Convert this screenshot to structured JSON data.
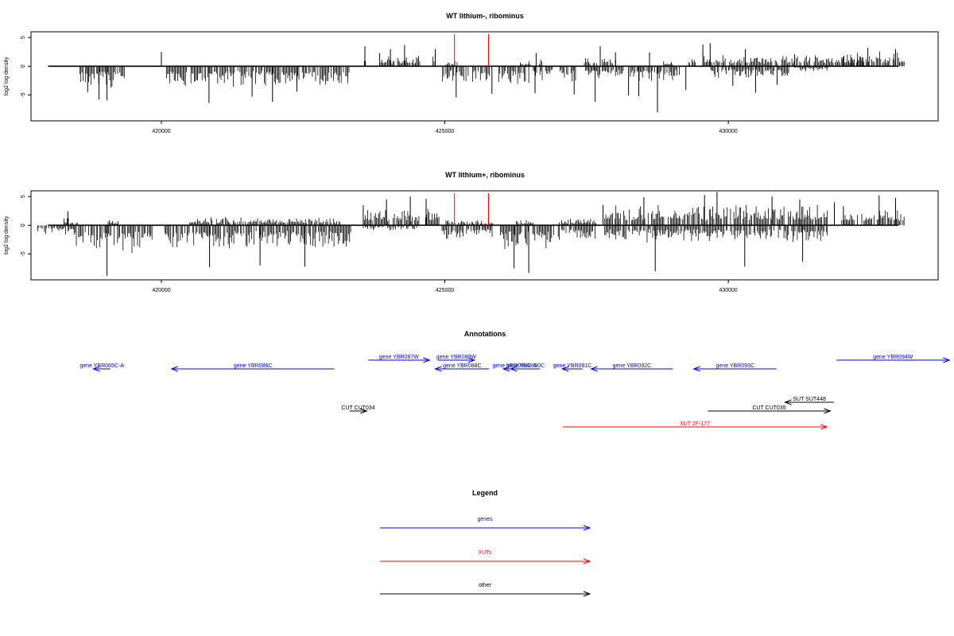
{
  "chart_data": [
    {
      "type": "bar",
      "title": "WT lithium-, ribominus",
      "ylabel": "log2 log density",
      "xlim": [
        417700,
        433700
      ],
      "ylim": [
        -9.5,
        6
      ],
      "xticks": [
        420000,
        425000,
        430000
      ],
      "yticks": [
        5,
        0,
        -5
      ],
      "grid": false,
      "baseline": 0,
      "markers_x": [
        425170,
        425770
      ],
      "marker_color": "#ff0000",
      "bar_color": "#000000",
      "peaks": [
        [
          420000,
          2.5
        ],
        [
          423590,
          3.5
        ],
        [
          423850,
          2.3
        ],
        [
          424040,
          3
        ],
        [
          424290,
          3.7
        ],
        [
          424830,
          3
        ],
        [
          426610,
          2.3
        ],
        [
          427740,
          3.5
        ],
        [
          428010,
          2.4
        ],
        [
          428610,
          2.4
        ],
        [
          429550,
          3.8
        ],
        [
          429680,
          4
        ],
        [
          430300,
          3
        ],
        [
          431170,
          2.1
        ],
        [
          432460,
          3.2
        ],
        [
          432950,
          3
        ],
        [
          418700,
          -4.5
        ],
        [
          418900,
          -5.8
        ],
        [
          419040,
          -5.9
        ],
        [
          420840,
          -6.4
        ],
        [
          421600,
          -5.3
        ],
        [
          421960,
          -6.2
        ],
        [
          422390,
          -4.4
        ],
        [
          425200,
          -5.4
        ],
        [
          425830,
          -4.8
        ],
        [
          426590,
          -4.7
        ],
        [
          427280,
          -4.9
        ],
        [
          427650,
          -6.2
        ],
        [
          428240,
          -5.1
        ],
        [
          428420,
          -5.2
        ],
        [
          428750,
          -8
        ],
        [
          429250,
          -4.1
        ],
        [
          430080,
          -3.4
        ],
        [
          430480,
          -4.6
        ],
        [
          430860,
          -3.2
        ]
      ],
      "segments": [
        {
          "from": 418560,
          "to": 419350,
          "sign": -1,
          "scale": 3.5
        },
        {
          "from": 420090,
          "to": 423310,
          "sign": -1,
          "scale": 3.2
        },
        {
          "from": 423560,
          "to": 423610,
          "sign": 1,
          "scale": 2.2
        },
        {
          "from": 423870,
          "to": 424560,
          "sign": 1,
          "scale": 1.8
        },
        {
          "from": 424790,
          "to": 424830,
          "sign": 1,
          "scale": 1.6
        },
        {
          "from": 424960,
          "to": 425790,
          "sign": -1,
          "scale": 2.5
        },
        {
          "from": 425000,
          "to": 425220,
          "sign": 1,
          "scale": 0.8
        },
        {
          "from": 425950,
          "to": 426510,
          "sign": -1,
          "scale": 2.8
        },
        {
          "from": 426310,
          "to": 426520,
          "sign": 1,
          "scale": 0.9
        },
        {
          "from": 426560,
          "to": 426910,
          "sign": -1,
          "scale": 2.2
        },
        {
          "from": 426670,
          "to": 426720,
          "sign": 1,
          "scale": 1.2
        },
        {
          "from": 427030,
          "to": 427340,
          "sign": -1,
          "scale": 2.4
        },
        {
          "from": 427460,
          "to": 427690,
          "sign": 1,
          "scale": 1.4
        },
        {
          "from": 427740,
          "to": 428030,
          "sign": 1,
          "scale": 1.7
        },
        {
          "from": 427480,
          "to": 428180,
          "sign": -1,
          "scale": 2.3
        },
        {
          "from": 428270,
          "to": 429150,
          "sign": -1,
          "scale": 2.6
        },
        {
          "from": 428860,
          "to": 429050,
          "sign": 1,
          "scale": 1.2
        },
        {
          "from": 429300,
          "to": 429420,
          "sign": 1,
          "scale": 1.3
        },
        {
          "from": 429550,
          "to": 432390,
          "sign": 1,
          "scale": 1.8
        },
        {
          "from": 429690,
          "to": 431080,
          "sign": -1,
          "scale": 1.9
        },
        {
          "from": 431170,
          "to": 431770,
          "sign": -1,
          "scale": 0.8
        },
        {
          "from": 432000,
          "to": 433100,
          "sign": 1,
          "scale": 2.4
        }
      ]
    },
    {
      "type": "bar",
      "title": "WT lithium+, ribominus",
      "ylabel": "log2 log density",
      "xlim": [
        417700,
        433700
      ],
      "ylim": [
        -9.5,
        6
      ],
      "xticks": [
        420000,
        425000,
        430000
      ],
      "yticks": [
        5,
        0,
        -5
      ],
      "grid": false,
      "baseline": 0,
      "markers_x": [
        425170,
        425770
      ],
      "marker_color": "#ff0000",
      "bar_color": "#000000",
      "peaks": [
        [
          418350,
          2.4
        ],
        [
          423560,
          3.5
        ],
        [
          423970,
          4.5
        ],
        [
          424390,
          5
        ],
        [
          424670,
          4.6
        ],
        [
          427790,
          3.5
        ],
        [
          428510,
          4.9
        ],
        [
          429580,
          5.3
        ],
        [
          429800,
          5.8
        ],
        [
          430770,
          5
        ],
        [
          431260,
          4.5
        ],
        [
          431870,
          4
        ],
        [
          432030,
          3.3
        ],
        [
          432660,
          5.2
        ],
        [
          432950,
          4.8
        ],
        [
          419040,
          -8.8
        ],
        [
          420850,
          -7.3
        ],
        [
          421740,
          -7
        ],
        [
          422530,
          -7.2
        ],
        [
          426220,
          -7.5
        ],
        [
          426480,
          -8.3
        ],
        [
          428710,
          -8
        ],
        [
          430290,
          -7.2
        ],
        [
          431310,
          -6.3
        ]
      ],
      "segments": [
        {
          "from": 417800,
          "to": 418450,
          "sign": -1,
          "scale": 1.5
        },
        {
          "from": 418280,
          "to": 418520,
          "sign": 1,
          "scale": 1.2
        },
        {
          "from": 418460,
          "to": 419850,
          "sign": -1,
          "scale": 4.3
        },
        {
          "from": 419060,
          "to": 419270,
          "sign": 1,
          "scale": 0.9
        },
        {
          "from": 420060,
          "to": 423350,
          "sign": -1,
          "scale": 3.6
        },
        {
          "from": 420500,
          "to": 423200,
          "sign": 1,
          "scale": 1.3
        },
        {
          "from": 423580,
          "to": 424590,
          "sign": 1,
          "scale": 2.6
        },
        {
          "from": 423560,
          "to": 424520,
          "sign": -1,
          "scale": 0.8
        },
        {
          "from": 424660,
          "to": 424900,
          "sign": 1,
          "scale": 2.6
        },
        {
          "from": 424950,
          "to": 425850,
          "sign": -1,
          "scale": 2.3
        },
        {
          "from": 425000,
          "to": 425860,
          "sign": 1,
          "scale": 0.9
        },
        {
          "from": 425960,
          "to": 426930,
          "sign": -1,
          "scale": 3.9
        },
        {
          "from": 426260,
          "to": 426570,
          "sign": 1,
          "scale": 0.9
        },
        {
          "from": 427000,
          "to": 427680,
          "sign": -1,
          "scale": 2.3
        },
        {
          "from": 427020,
          "to": 427680,
          "sign": 1,
          "scale": 1.1
        },
        {
          "from": 427820,
          "to": 431750,
          "sign": 1,
          "scale": 3.2
        },
        {
          "from": 427820,
          "to": 431750,
          "sign": -1,
          "scale": 2.7
        },
        {
          "from": 432000,
          "to": 433100,
          "sign": 1,
          "scale": 2.6
        }
      ]
    }
  ],
  "annotations": {
    "title": "Annotations",
    "xlim": [
      417700,
      433700
    ],
    "colors": {
      "genes": "#0000ff",
      "XUTs": "#ff0000",
      "other": "#000000"
    },
    "features": [
      {
        "label": "gene YBR085C-A",
        "start": 418800,
        "end": 419100,
        "strand": "-",
        "row": 1,
        "kind": "genes"
      },
      {
        "label": "gene YBR086C",
        "start": 420180,
        "end": 423050,
        "strand": "-",
        "row": 1,
        "kind": "genes"
      },
      {
        "label": "gene YBR087W",
        "start": 423650,
        "end": 424730,
        "strand": "+",
        "row": 0,
        "kind": "genes"
      },
      {
        "label": "gene YBR088C",
        "start": 424830,
        "end": 425780,
        "strand": "-",
        "row": 1,
        "kind": "genes"
      },
      {
        "label": "gene YBR089W",
        "start": 424880,
        "end": 425520,
        "strand": "+",
        "row": 0,
        "kind": "genes"
      },
      {
        "label": "gene YBR089C-A",
        "start": 426030,
        "end": 426430,
        "strand": "-",
        "row": 1,
        "kind": "genes"
      },
      {
        "label": "gene YBR090C",
        "start": 426160,
        "end": 426680,
        "strand": "-",
        "row": 1,
        "kind": "genes"
      },
      {
        "label": "gene YBR091C",
        "start": 427070,
        "end": 427430,
        "strand": "-",
        "row": 1,
        "kind": "genes"
      },
      {
        "label": "gene YBR092C",
        "start": 427580,
        "end": 429020,
        "strand": "-",
        "row": 1,
        "kind": "genes"
      },
      {
        "label": "gene YBR093C",
        "start": 429390,
        "end": 430850,
        "strand": "-",
        "row": 1,
        "kind": "genes"
      },
      {
        "label": "gene YBR094W",
        "start": 431910,
        "end": 433900,
        "strand": "+",
        "row": 0,
        "kind": "genes"
      },
      {
        "label": "SUT SUT448",
        "start": 431000,
        "end": 431860,
        "strand": "-",
        "row": 2,
        "kind": "other"
      },
      {
        "label": "CUT CUT034",
        "start": 423320,
        "end": 423620,
        "strand": "+",
        "row": 3,
        "kind": "other"
      },
      {
        "label": "CUT CUT035",
        "start": 429640,
        "end": 431800,
        "strand": "+",
        "row": 3,
        "kind": "other"
      },
      {
        "label": "XUT 2F-177",
        "start": 427080,
        "end": 431740,
        "strand": "+",
        "row": 4,
        "kind": "XUTs"
      }
    ]
  },
  "legend": {
    "title": "Legend",
    "items": [
      {
        "label": "genes",
        "color": "#0000ff"
      },
      {
        "label": "XUTs",
        "color": "#ff0000"
      },
      {
        "label": "other",
        "color": "#000000"
      }
    ]
  }
}
